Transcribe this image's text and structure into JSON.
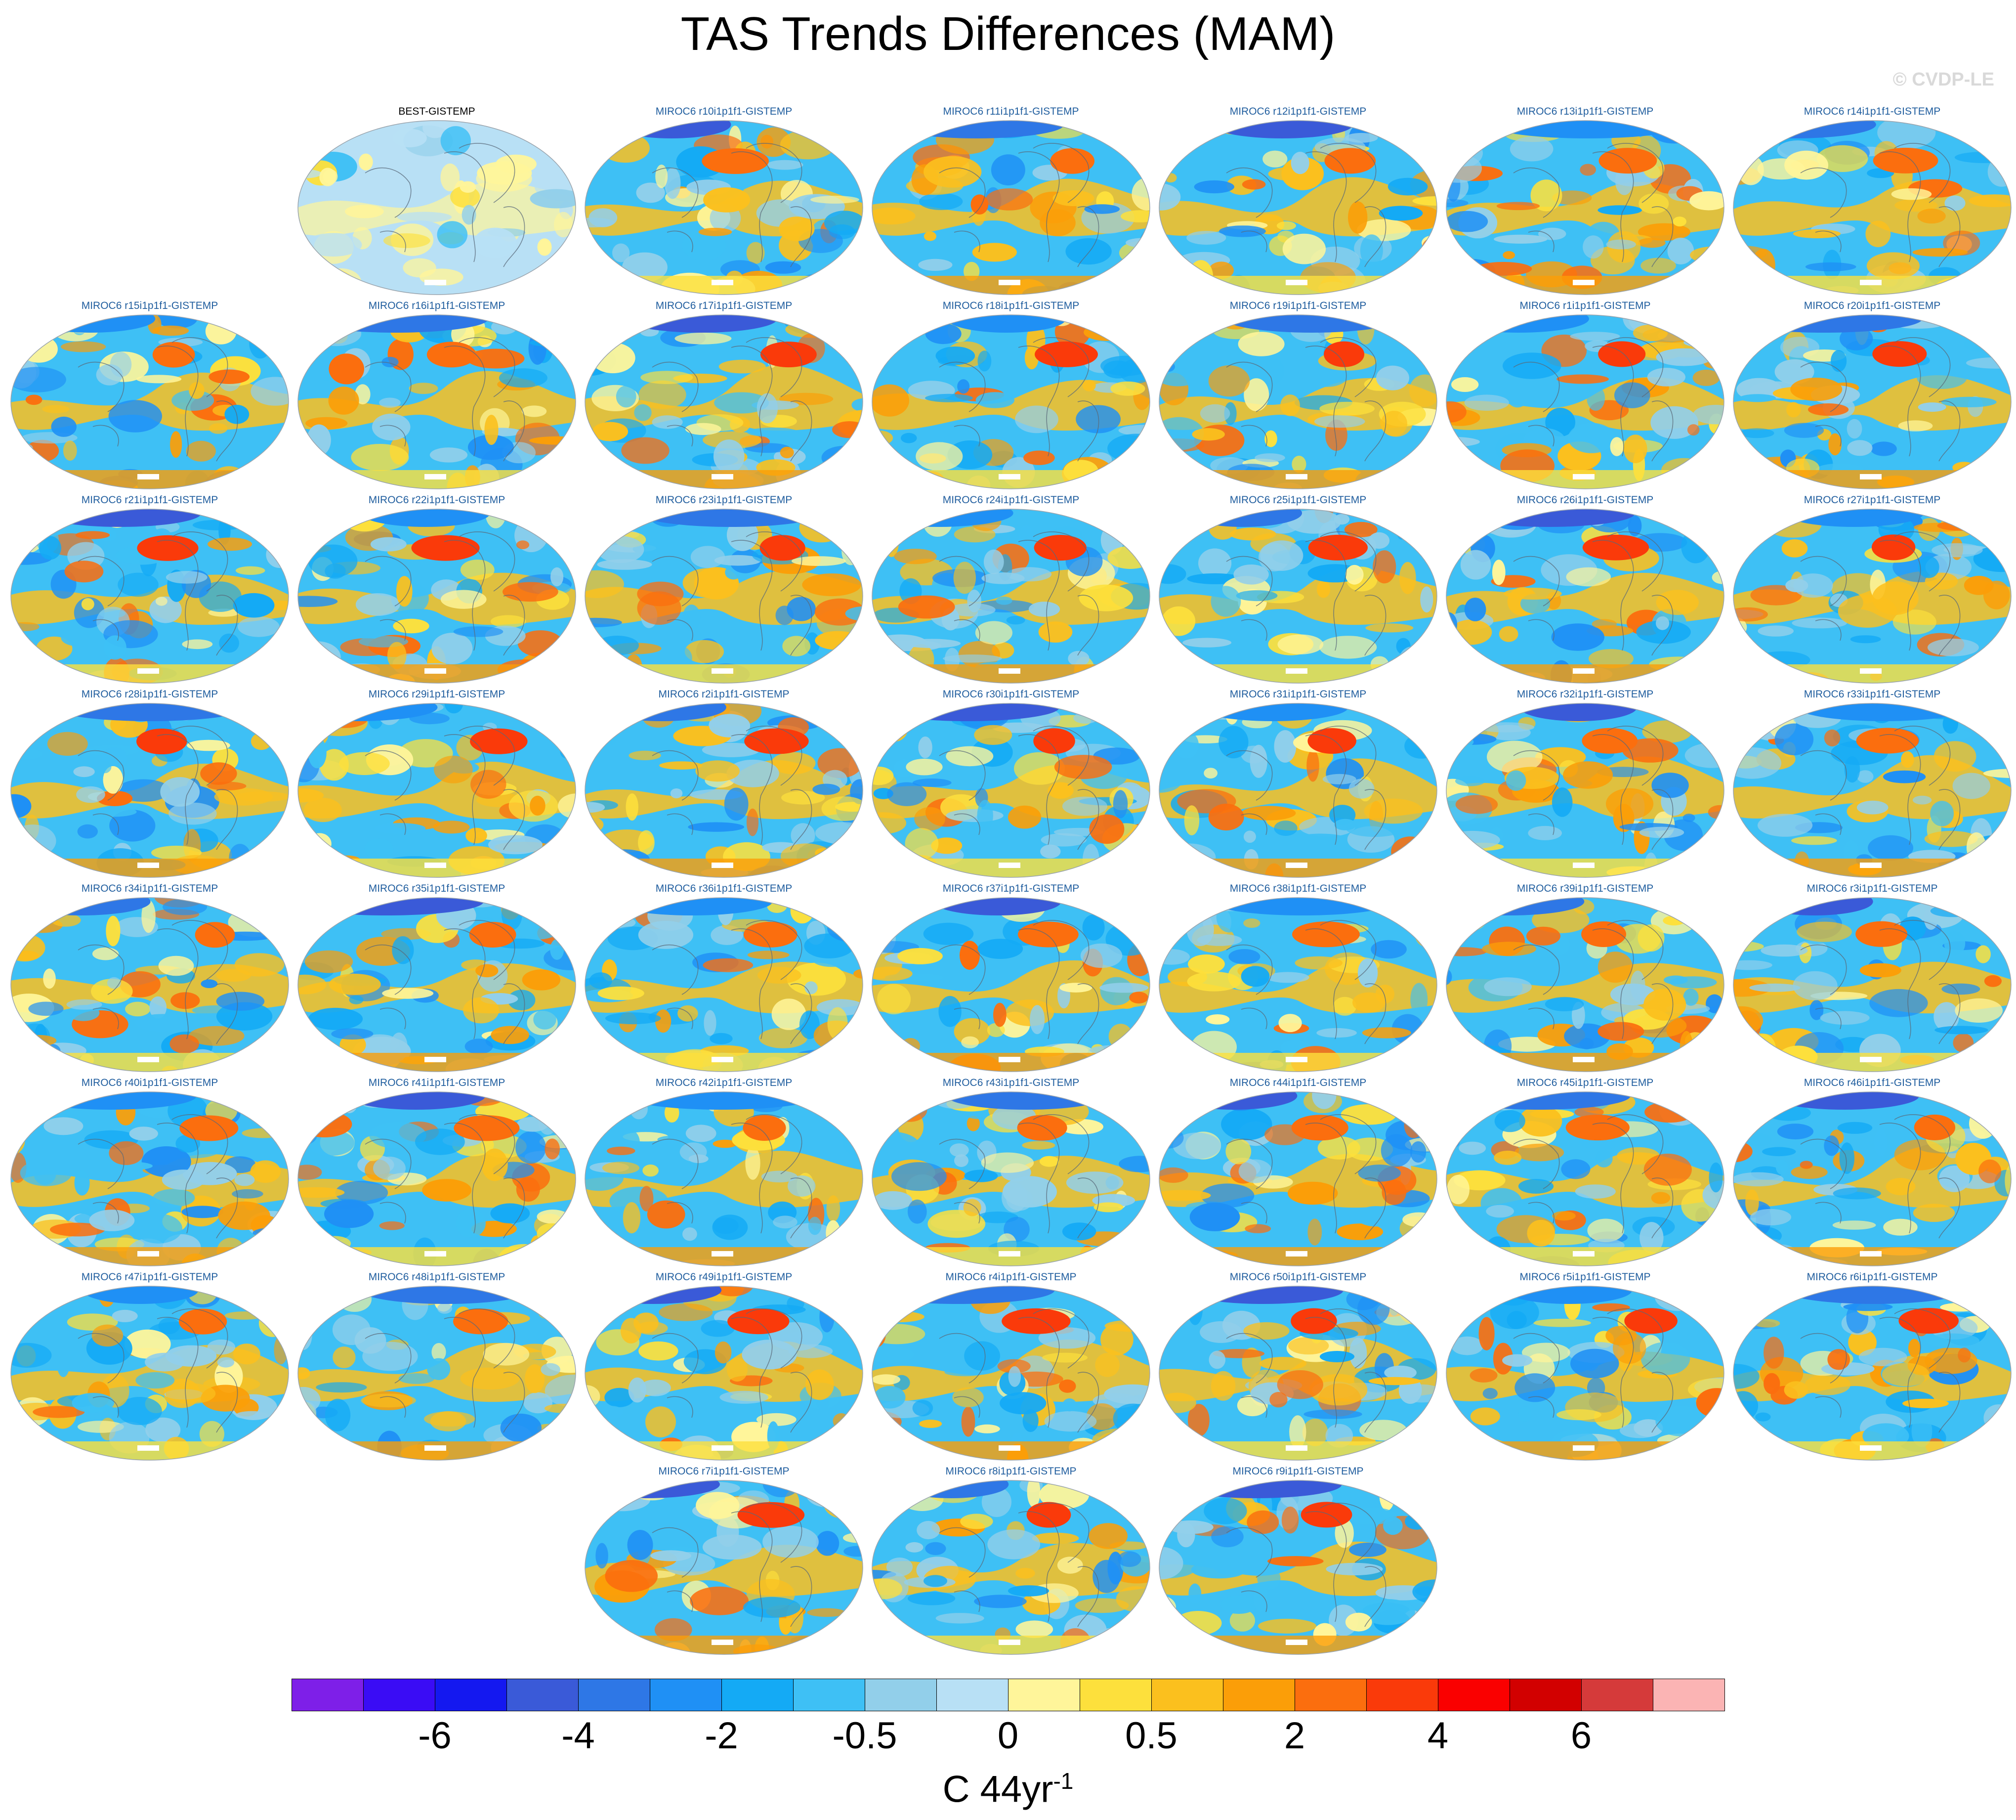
{
  "title": "TAS Trends Differences (MAM)",
  "watermark": "© CVDP-LE",
  "panel_titles": [
    "BEST-GISTEMP",
    "MIROC6 r10i1p1f1-GISTEMP",
    "MIROC6 r11i1p1f1-GISTEMP",
    "MIROC6 r12i1p1f1-GISTEMP",
    "MIROC6 r13i1p1f1-GISTEMP",
    "MIROC6 r14i1p1f1-GISTEMP",
    "MIROC6 r15i1p1f1-GISTEMP",
    "MIROC6 r16i1p1f1-GISTEMP",
    "MIROC6 r17i1p1f1-GISTEMP",
    "MIROC6 r18i1p1f1-GISTEMP",
    "MIROC6 r19i1p1f1-GISTEMP",
    "MIROC6 r1i1p1f1-GISTEMP",
    "MIROC6 r20i1p1f1-GISTEMP",
    "MIROC6 r21i1p1f1-GISTEMP",
    "MIROC6 r22i1p1f1-GISTEMP",
    "MIROC6 r23i1p1f1-GISTEMP",
    "MIROC6 r24i1p1f1-GISTEMP",
    "MIROC6 r25i1p1f1-GISTEMP",
    "MIROC6 r26i1p1f1-GISTEMP",
    "MIROC6 r27i1p1f1-GISTEMP",
    "MIROC6 r28i1p1f1-GISTEMP",
    "MIROC6 r29i1p1f1-GISTEMP",
    "MIROC6 r2i1p1f1-GISTEMP",
    "MIROC6 r30i1p1f1-GISTEMP",
    "MIROC6 r31i1p1f1-GISTEMP",
    "MIROC6 r32i1p1f1-GISTEMP",
    "MIROC6 r33i1p1f1-GISTEMP",
    "MIROC6 r34i1p1f1-GISTEMP",
    "MIROC6 r35i1p1f1-GISTEMP",
    "MIROC6 r36i1p1f1-GISTEMP",
    "MIROC6 r37i1p1f1-GISTEMP",
    "MIROC6 r38i1p1f1-GISTEMP",
    "MIROC6 r39i1p1f1-GISTEMP",
    "MIROC6 r3i1p1f1-GISTEMP",
    "MIROC6 r40i1p1f1-GISTEMP",
    "MIROC6 r41i1p1f1-GISTEMP",
    "MIROC6 r42i1p1f1-GISTEMP",
    "MIROC6 r43i1p1f1-GISTEMP",
    "MIROC6 r44i1p1f1-GISTEMP",
    "MIROC6 r45i1p1f1-GISTEMP",
    "MIROC6 r46i1p1f1-GISTEMP",
    "MIROC6 r47i1p1f1-GISTEMP",
    "MIROC6 r48i1p1f1-GISTEMP",
    "MIROC6 r49i1p1f1-GISTEMP",
    "MIROC6 r4i1p1f1-GISTEMP",
    "MIROC6 r50i1p1f1-GISTEMP",
    "MIROC6 r5i1p1f1-GISTEMP",
    "MIROC6 r6i1p1f1-GISTEMP",
    "MIROC6 r7i1p1f1-GISTEMP",
    "MIROC6 r8i1p1f1-GISTEMP",
    "MIROC6 r9i1p1f1-GISTEMP"
  ],
  "colorbar": {
    "colors": [
      "#7e1fe8",
      "#3a0cf5",
      "#1418f0",
      "#3a5ad8",
      "#2e77e6",
      "#1f90f5",
      "#14aaf5",
      "#3ec0f5",
      "#92cfea",
      "#b8e0f5",
      "#fff59a",
      "#fde03c",
      "#fbc01e",
      "#fb9e08",
      "#fb6e0e",
      "#fa3a0a",
      "#fa0000",
      "#d20000",
      "#d53a3a",
      "#fbb4b4"
    ],
    "labels": [
      "-6",
      "-4",
      "-2",
      "-0.5",
      "0",
      "0.5",
      "2",
      "4",
      "6"
    ],
    "units": "C 44yr",
    "units_exponent": "-1"
  }
}
